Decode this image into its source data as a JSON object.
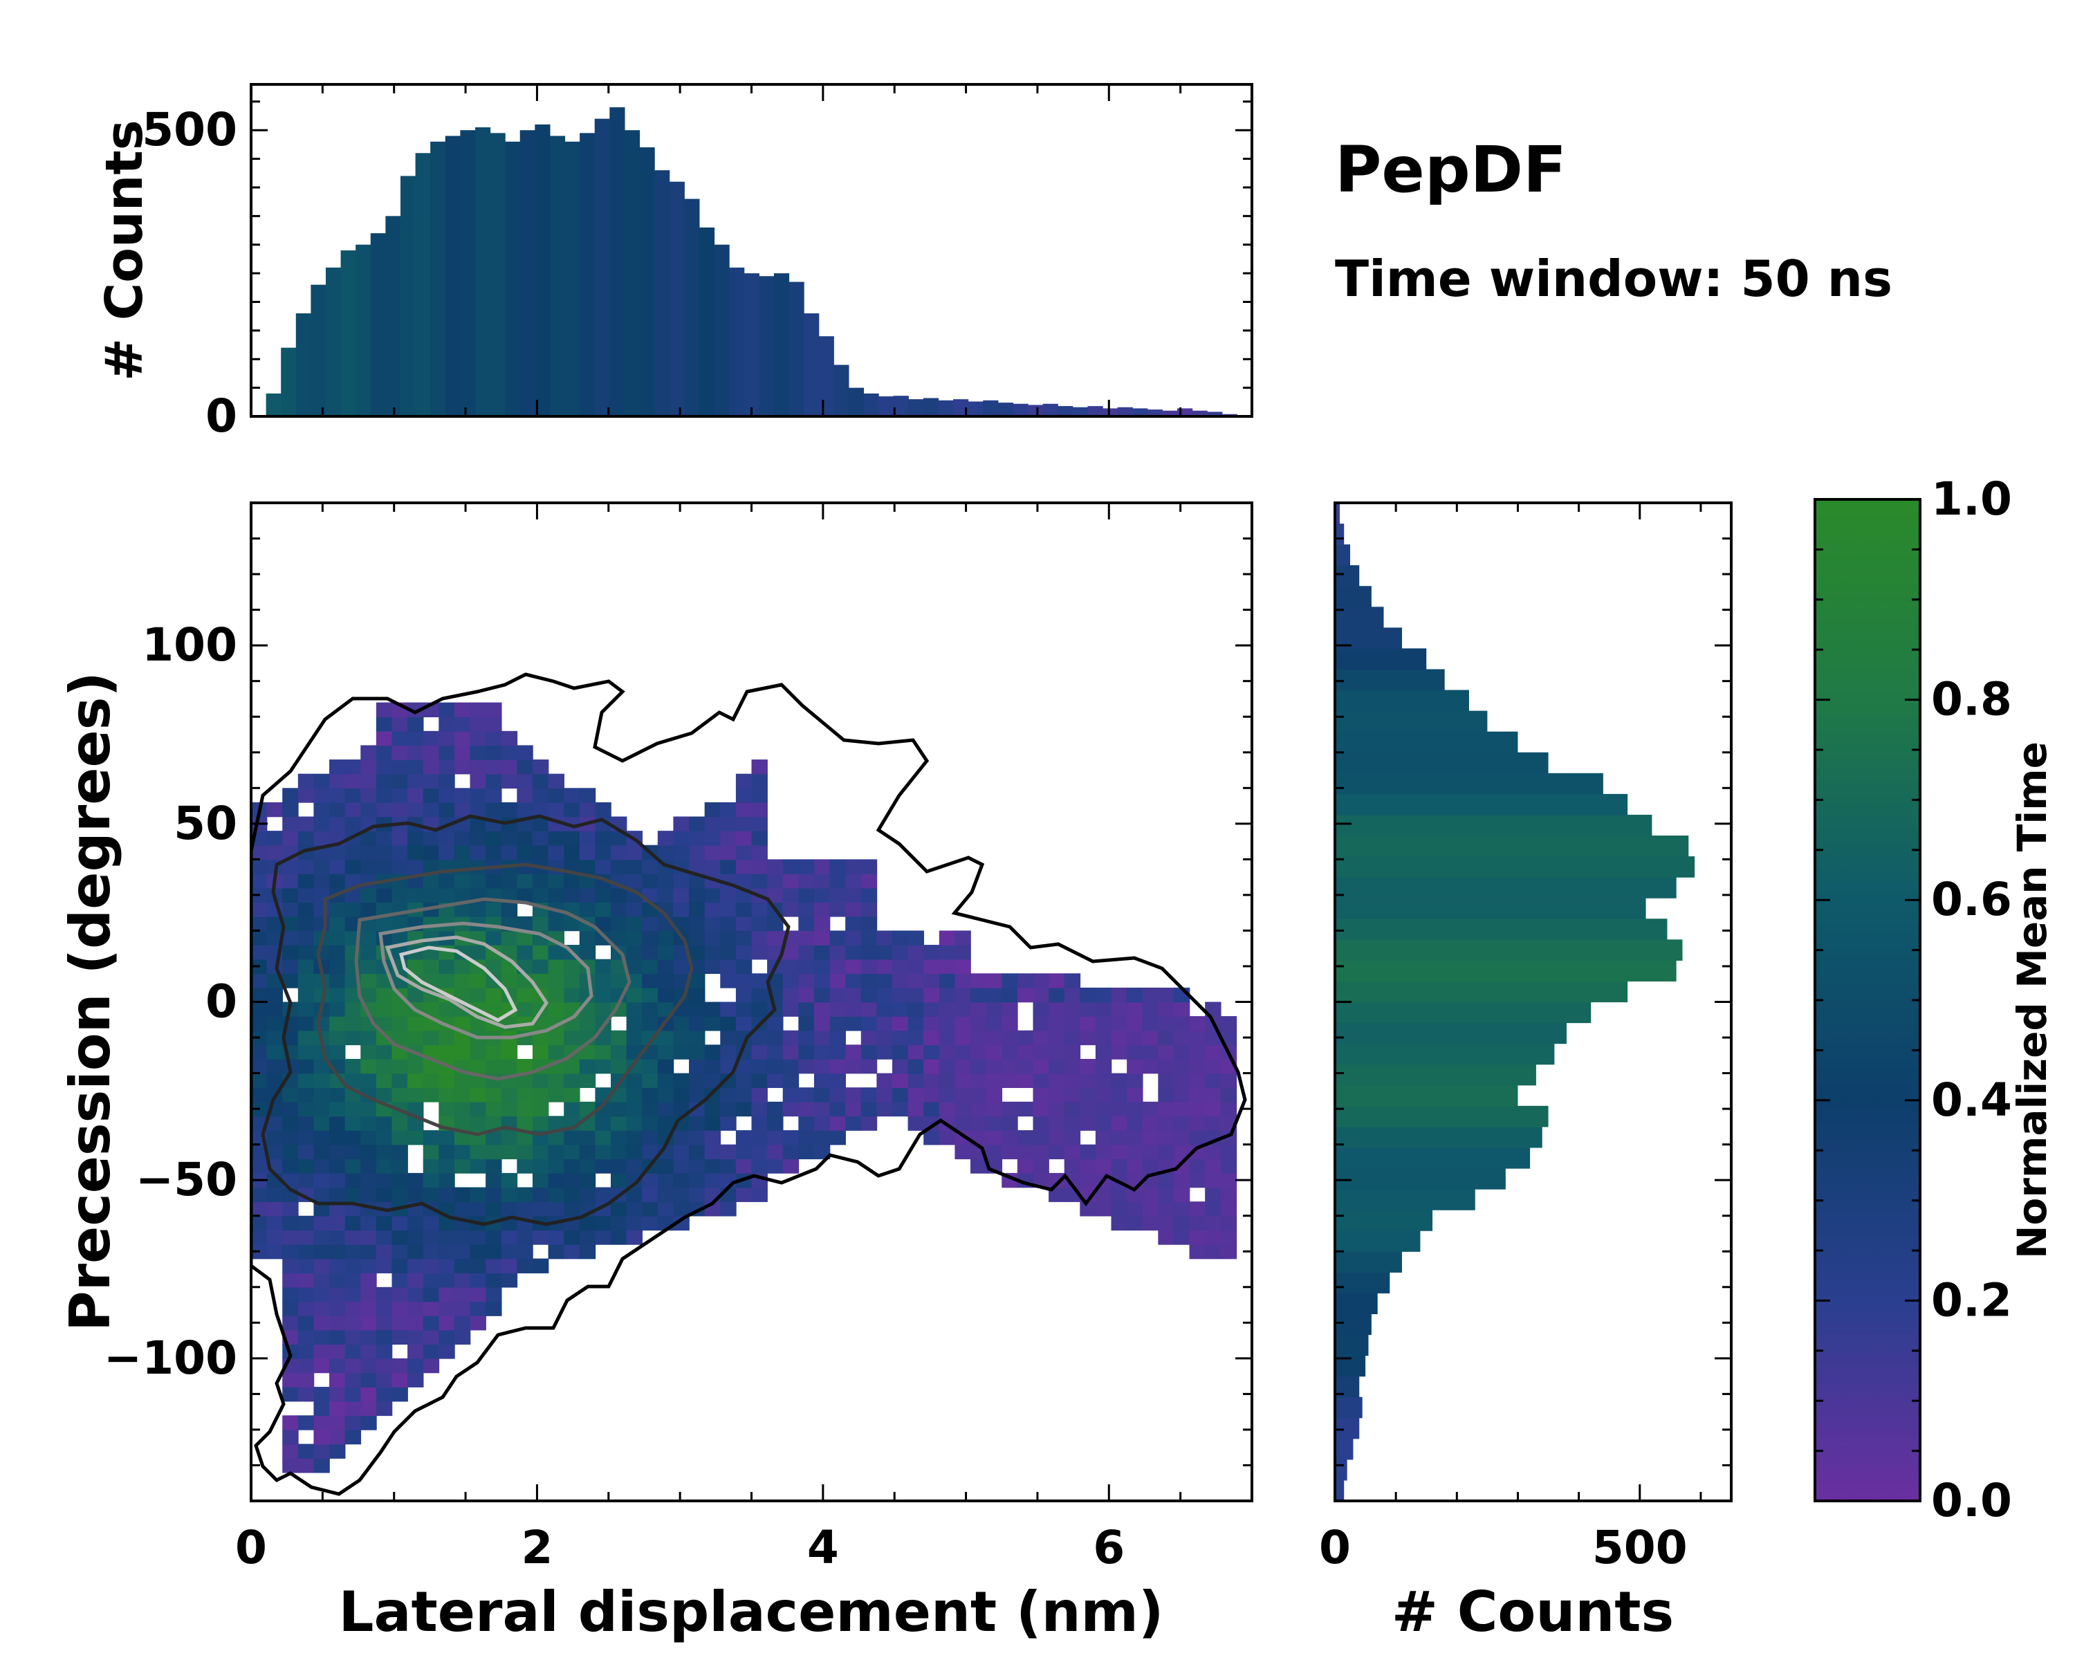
{
  "chart_data": {
    "type": "heatmap",
    "title": "PepDF",
    "subtitle": "Time window: 50 ns",
    "main": {
      "xlabel": "Lateral displacement (nm)",
      "ylabel": "Precession (degrees)",
      "xlim": [
        0,
        7
      ],
      "ylim": [
        -140,
        140
      ],
      "xticks": [
        "0",
        "2",
        "4",
        "6"
      ],
      "xtick_values": [
        0,
        2,
        4,
        6
      ],
      "yticks": [
        "100",
        "50",
        "0",
        "−50",
        "−100"
      ],
      "ytick_values": [
        100,
        50,
        0,
        -50,
        -100
      ]
    },
    "top_histogram": {
      "type": "bar",
      "ylabel": "# Counts",
      "ylim": [
        0,
        580
      ],
      "yticks": [
        "0",
        "500"
      ],
      "ytick_values": [
        0,
        500
      ],
      "bin_edges_range": [
        0,
        7
      ],
      "values": [
        0,
        40,
        120,
        180,
        230,
        260,
        290,
        300,
        320,
        350,
        420,
        460,
        480,
        490,
        500,
        505,
        495,
        480,
        500,
        510,
        490,
        480,
        495,
        520,
        540,
        500,
        470,
        430,
        410,
        380,
        330,
        300,
        260,
        250,
        245,
        250,
        235,
        180,
        140,
        90,
        50,
        40,
        35,
        36,
        30,
        32,
        28,
        30,
        26,
        28,
        24,
        22,
        20,
        22,
        18,
        16,
        18,
        14,
        16,
        14,
        12,
        10,
        14,
        10,
        8,
        4,
        0
      ]
    },
    "right_histogram": {
      "type": "bar",
      "orientation": "horizontal",
      "xlabel": "# Counts",
      "xlim": [
        0,
        650
      ],
      "xticks": [
        "0",
        "500"
      ],
      "xtick_values": [
        0,
        500
      ],
      "bin_edges_range": [
        -140,
        140
      ],
      "values": [
        15,
        20,
        30,
        40,
        45,
        40,
        50,
        55,
        60,
        70,
        90,
        110,
        140,
        160,
        230,
        280,
        320,
        340,
        350,
        300,
        330,
        360,
        380,
        420,
        480,
        560,
        570,
        545,
        510,
        560,
        590,
        580,
        520,
        480,
        440,
        350,
        300,
        250,
        220,
        180,
        150,
        110,
        80,
        60,
        40,
        25,
        15,
        8
      ]
    },
    "colorbar": {
      "label": "Normalized Mean Time",
      "range": [
        0.0,
        1.0
      ],
      "ticks": [
        "1.0",
        "0.8",
        "0.6",
        "0.4",
        "0.2",
        "0.0"
      ],
      "tick_values": [
        1.0,
        0.8,
        0.6,
        0.4,
        0.2,
        0.0
      ],
      "colors": [
        "#6a2fa0",
        "#2a3f8f",
        "#0d3f6b",
        "#0f5a6a",
        "#1f7a46",
        "#2a8a2a"
      ]
    }
  }
}
